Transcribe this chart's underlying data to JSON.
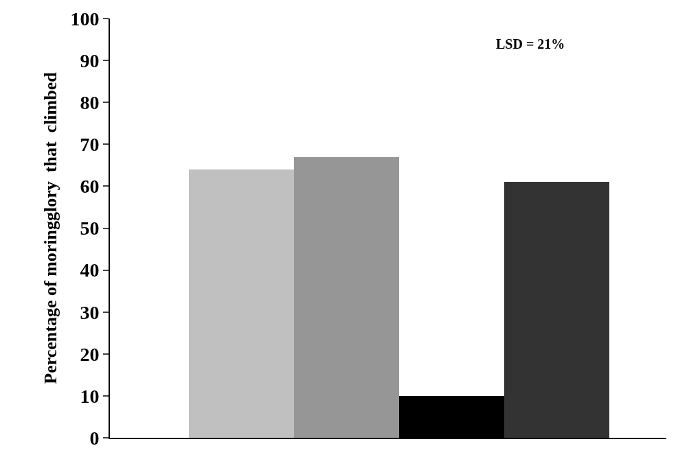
{
  "chart_data": {
    "type": "bar",
    "ylabel": "Percentage of moringglory  that  climbed",
    "categories": [
      null,
      null,
      null,
      null
    ],
    "values": [
      64,
      67,
      10,
      61
    ],
    "colors": [
      "#c0c0c0",
      "#969696",
      "#000000",
      "#333333"
    ],
    "ylim": [
      0,
      100
    ],
    "yticks": [
      0,
      10,
      20,
      30,
      40,
      50,
      60,
      70,
      80,
      90,
      100
    ],
    "annotations": [
      "LSD = 21%"
    ]
  }
}
